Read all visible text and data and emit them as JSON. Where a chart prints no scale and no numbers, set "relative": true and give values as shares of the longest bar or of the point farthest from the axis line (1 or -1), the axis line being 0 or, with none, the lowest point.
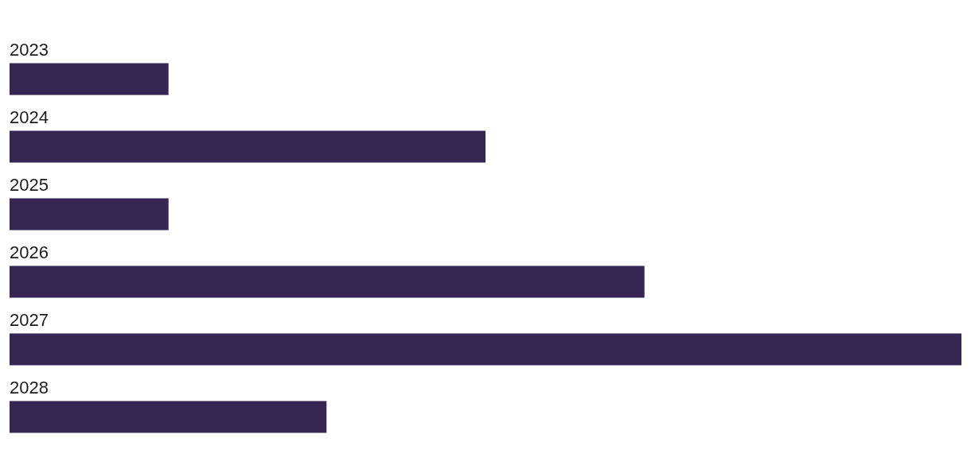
{
  "chart_data": {
    "type": "bar",
    "orientation": "horizontal",
    "relative": true,
    "categories": [
      "2023",
      "2024",
      "2025",
      "2026",
      "2027",
      "2028"
    ],
    "values": [
      0.167,
      0.5,
      0.167,
      0.667,
      1,
      0.333
    ],
    "color": "#372554"
  }
}
